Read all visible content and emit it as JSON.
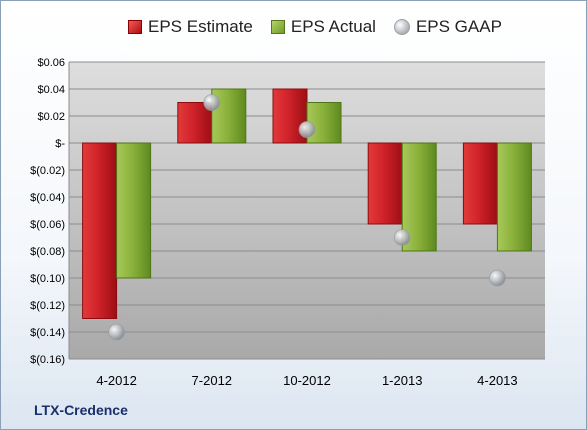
{
  "legend": {
    "estimate": "EPS Estimate",
    "actual": "EPS Actual",
    "gaap": "EPS GAAP"
  },
  "company": "LTX-Credence",
  "colors": {
    "estimate": "#c8161d",
    "actual": "#84ad35",
    "gaap": "#b9bcc0",
    "plot_bg": "#d4d4d4"
  },
  "chart_data": {
    "type": "bar",
    "categories": [
      "4-2012",
      "7-2012",
      "10-2012",
      "1-2013",
      "4-2013"
    ],
    "series": [
      {
        "name": "EPS Estimate",
        "values": [
          -0.13,
          0.03,
          0.04,
          -0.06,
          -0.06
        ]
      },
      {
        "name": "EPS Actual",
        "values": [
          -0.1,
          0.04,
          0.03,
          -0.08,
          -0.08
        ]
      },
      {
        "name": "EPS GAAP",
        "values": [
          -0.14,
          0.03,
          0.01,
          -0.07,
          -0.1
        ],
        "style": "marker"
      }
    ],
    "ylim": [
      -0.16,
      0.06
    ],
    "yticks": [
      0.06,
      0.04,
      0.02,
      0,
      -0.02,
      -0.04,
      -0.06,
      -0.08,
      -0.1,
      -0.12,
      -0.14,
      -0.16
    ],
    "ytick_labels": [
      "$0.06",
      "$0.04",
      "$0.02",
      "$-",
      "$(0.02)",
      "$(0.04)",
      "$(0.06)",
      "$(0.08)",
      "$(0.10)",
      "$(0.12)",
      "$(0.14)",
      "$(0.16)"
    ],
    "legend_position": "top",
    "grid": true
  }
}
